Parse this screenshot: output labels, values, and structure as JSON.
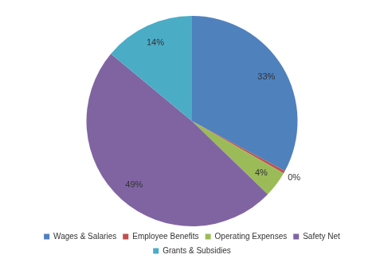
{
  "chart_data": {
    "type": "pie",
    "categories": [
      "Wages & Salaries",
      "Employee Benefits",
      "Operating Expenses",
      "Safety Net",
      "Grants & Subsidies"
    ],
    "values": [
      33,
      0.4,
      4,
      49,
      14
    ],
    "value_labels": [
      "33%",
      "0%",
      "4%",
      "49%",
      "14%"
    ],
    "colors": [
      "#4f81bd",
      "#c0504d",
      "#9bbb59",
      "#8064a2",
      "#4bacc6"
    ],
    "data_labels": true,
    "legend": "bottom"
  }
}
